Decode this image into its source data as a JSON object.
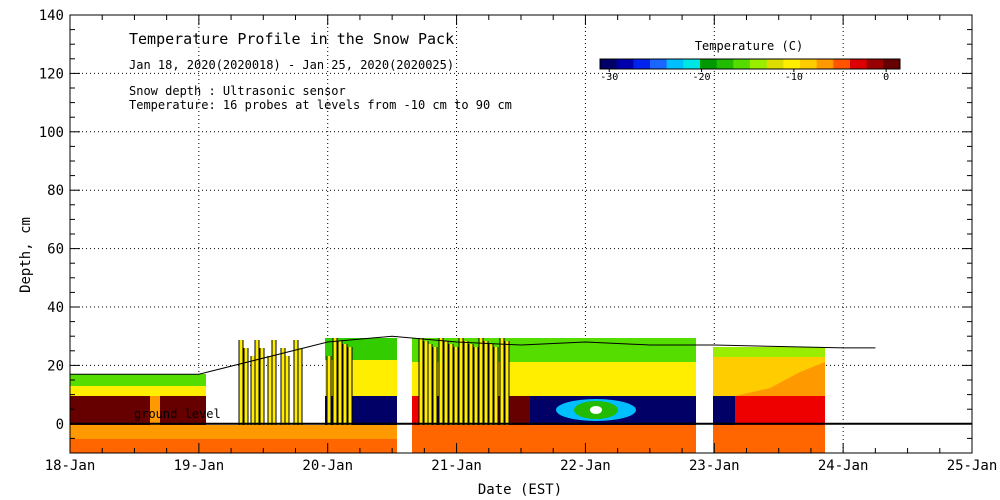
{
  "chart_data": {
    "type": "heatmap",
    "title": "Temperature Profile in the Snow Pack",
    "subtitle": "Jan 18, 2020(2020018) - Jan 25, 2020(2020025)",
    "notes": [
      "Snow depth : Ultrasonic sensor",
      "Temperature: 16 probes at levels from -10 cm to 90 cm"
    ],
    "xlabel": "Date (EST)",
    "ylabel": "Depth, cm",
    "x_ticks": [
      "18-Jan",
      "19-Jan",
      "20-Jan",
      "21-Jan",
      "22-Jan",
      "23-Jan",
      "24-Jan",
      "25-Jan"
    ],
    "xlim": [
      "2020-01-18",
      "2020-01-25"
    ],
    "ylim": [
      -10,
      140
    ],
    "y_ticks": [
      0,
      20,
      40,
      60,
      80,
      100,
      120,
      140
    ],
    "grid": true,
    "ground_label": "ground level",
    "colorbar": {
      "title": "Temperature (C)",
      "range": [
        -31,
        1.5
      ],
      "ticks": [
        -30,
        -20,
        -10,
        0
      ],
      "tick_labels": [
        "-30",
        "-20",
        "-10",
        "0"
      ],
      "colors": [
        "#000066",
        "#0000aa",
        "#0022ee",
        "#1a66ff",
        "#00bfff",
        "#00e6e6",
        "#009900",
        "#22bb00",
        "#55dd00",
        "#99ee00",
        "#dddd00",
        "#ffee00",
        "#ffcc00",
        "#ff9900",
        "#ff5500",
        "#dd0000",
        "#990000",
        "#660000"
      ]
    },
    "snow_depth_cm": [
      {
        "date": "2020-01-18 00:00",
        "depth": 17
      },
      {
        "date": "2020-01-18 12:00",
        "depth": 17
      },
      {
        "date": "2020-01-19 00:00",
        "depth": 17
      },
      {
        "date": "2020-01-20 00:00",
        "depth": 28
      },
      {
        "date": "2020-01-20 12:00",
        "depth": 30
      },
      {
        "date": "2020-01-21 00:00",
        "depth": 28
      },
      {
        "date": "2020-01-21 12:00",
        "depth": 27
      },
      {
        "date": "2020-01-22 00:00",
        "depth": 28
      },
      {
        "date": "2020-01-22 12:00",
        "depth": 27
      },
      {
        "date": "2020-01-23 00:00",
        "depth": 27
      },
      {
        "date": "2020-01-24 00:00",
        "depth": 26
      },
      {
        "date": "2020-01-24 06:00",
        "depth": 26
      }
    ]
  }
}
